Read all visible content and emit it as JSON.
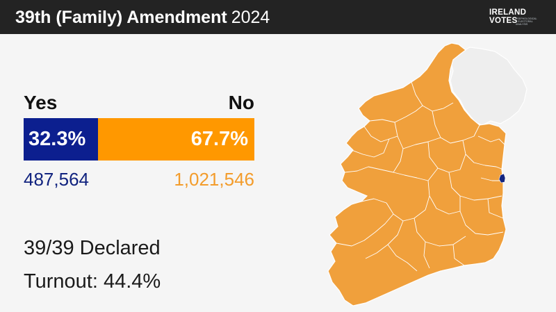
{
  "header": {
    "title_bold": "39th (Family) Amendment",
    "title_year": "2024",
    "logo": {
      "line1": "IRELAND",
      "line2": "VOTES",
      "tagline": "Psephological & Electoral Analysis"
    }
  },
  "results": {
    "yes": {
      "label": "Yes",
      "percent": "32.3%",
      "share": 0.323,
      "votes": "487,564",
      "color": "#0c1f8f"
    },
    "no": {
      "label": "No",
      "percent": "67.7%",
      "share": 0.677,
      "votes": "1,021,546",
      "color": "#ff9800"
    }
  },
  "stats": {
    "declared": "39/39 Declared",
    "turnout": "Turnout: 44.4%"
  },
  "map": {
    "winning_color": "#f0a03c",
    "yes_color": "#12247f",
    "northern_ireland_color": "#eeeeee",
    "border_color": "#ffffff"
  }
}
